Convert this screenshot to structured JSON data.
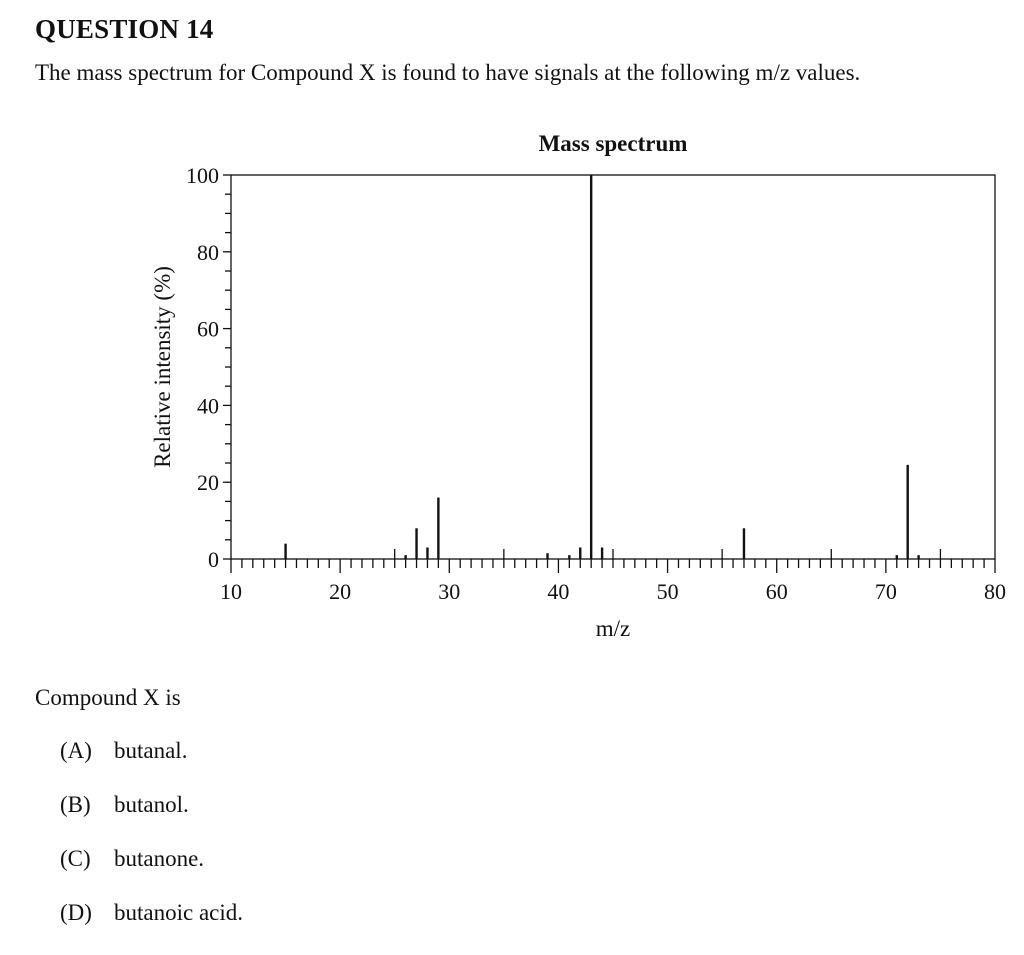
{
  "question": {
    "title": "QUESTION 14",
    "prompt": "The mass spectrum for Compound X is found to have signals at the following m/z values.",
    "stem": "Compound X is",
    "options": [
      {
        "letter": "(A)",
        "text": "butanal."
      },
      {
        "letter": "(B)",
        "text": "butanol."
      },
      {
        "letter": "(C)",
        "text": "butanone."
      },
      {
        "letter": "(D)",
        "text": "butanoic acid."
      }
    ]
  },
  "chart_data": {
    "type": "bar",
    "title": "Mass spectrum",
    "xlabel": "m/z",
    "ylabel": "Relative intensity (%)",
    "xlim": [
      10,
      80
    ],
    "ylim": [
      0,
      100
    ],
    "x_ticks": [
      10,
      20,
      30,
      40,
      50,
      60,
      70,
      80
    ],
    "y_ticks": [
      0,
      20,
      40,
      60,
      80,
      100
    ],
    "x_minor_step": 1,
    "y_minor_step": 5,
    "grid": false,
    "legend": null,
    "x": [
      15,
      26,
      27,
      28,
      29,
      39,
      41,
      42,
      43,
      44,
      57,
      71,
      72,
      73
    ],
    "values": [
      4,
      1,
      8,
      3,
      16,
      1.5,
      1,
      3,
      100,
      3,
      8,
      1,
      24.5,
      1
    ]
  }
}
